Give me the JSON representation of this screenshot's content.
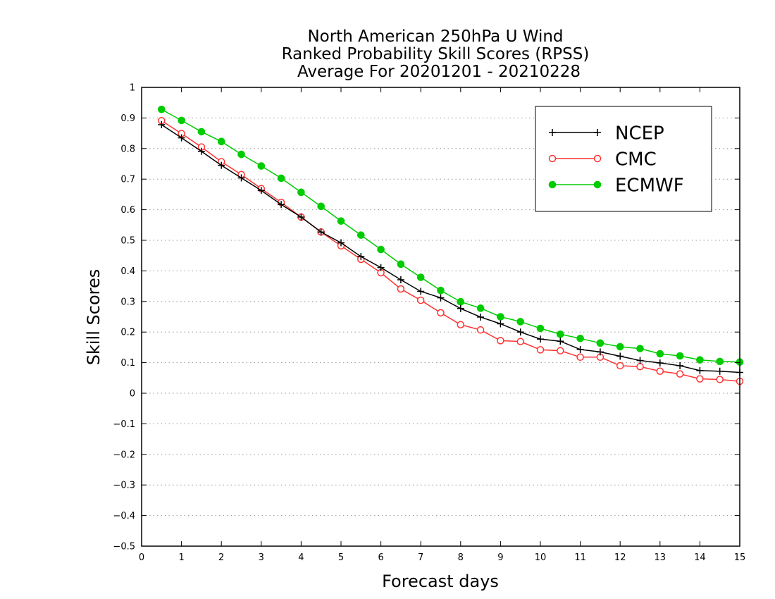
{
  "chart_data": {
    "type": "line",
    "title": [
      "North American 250hPa U Wind",
      "Ranked Probability Skill Scores (RPSS)",
      "Average For 20201201 - 20210228"
    ],
    "xlabel": "Forecast days",
    "ylabel": "Skill Scores",
    "xlim": [
      0,
      15
    ],
    "ylim": [
      -0.5,
      1
    ],
    "x_ticks": [
      "0",
      "1",
      "2",
      "3",
      "4",
      "5",
      "6",
      "7",
      "8",
      "9",
      "10",
      "11",
      "12",
      "13",
      "14",
      "15"
    ],
    "y_ticks": [
      "−0.5",
      "−0.4",
      "−0.3",
      "−0.2",
      "−0.1",
      "0",
      "0.1",
      "0.2",
      "0.3",
      "0.4",
      "0.5",
      "0.6",
      "0.7",
      "0.8",
      "0.9",
      "1"
    ],
    "grid": "horizontal dotted",
    "legend_position": "top-right",
    "x": [
      0.5,
      1,
      1.5,
      2,
      2.5,
      3,
      3.5,
      4,
      4.5,
      5,
      5.5,
      6,
      6.5,
      7,
      7.5,
      8,
      8.5,
      9,
      9.5,
      10,
      10.5,
      11,
      11.5,
      12,
      12.5,
      13,
      13.5,
      14,
      14.5,
      15
    ],
    "series": [
      {
        "name": "NCEP",
        "color": "#000000",
        "marker": "plus",
        "values": [
          0.878,
          0.835,
          0.791,
          0.745,
          0.704,
          0.663,
          0.617,
          0.576,
          0.527,
          0.492,
          0.447,
          0.411,
          0.371,
          0.333,
          0.312,
          0.277,
          0.249,
          0.227,
          0.2,
          0.177,
          0.17,
          0.143,
          0.135,
          0.121,
          0.107,
          0.099,
          0.09,
          0.074,
          0.072,
          0.068
        ]
      },
      {
        "name": "CMC",
        "color": "#ff3333",
        "marker": "open-circle",
        "values": [
          0.891,
          0.849,
          0.805,
          0.757,
          0.715,
          0.669,
          0.624,
          0.576,
          0.527,
          0.482,
          0.438,
          0.394,
          0.341,
          0.304,
          0.263,
          0.224,
          0.207,
          0.172,
          0.169,
          0.142,
          0.139,
          0.118,
          0.118,
          0.09,
          0.087,
          0.072,
          0.063,
          0.047,
          0.045,
          0.039
        ]
      },
      {
        "name": "ECMWF",
        "color": "#00cc00",
        "marker": "filled-circle",
        "values": [
          0.928,
          0.892,
          0.855,
          0.823,
          0.781,
          0.743,
          0.703,
          0.657,
          0.611,
          0.563,
          0.517,
          0.47,
          0.422,
          0.379,
          0.336,
          0.299,
          0.278,
          0.25,
          0.234,
          0.212,
          0.193,
          0.179,
          0.164,
          0.152,
          0.146,
          0.129,
          0.122,
          0.109,
          0.104,
          0.102
        ]
      }
    ]
  }
}
